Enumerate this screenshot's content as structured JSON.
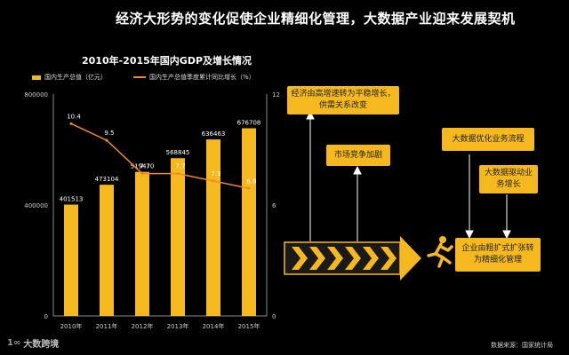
{
  "headline": "经济大形势的变化促使企业精细化管理，大数据产业迎来发展契机",
  "chart_data": {
    "type": "bar",
    "title": "2010年-2015年国内GDP及增长情况",
    "categories": [
      "2010年",
      "2011年",
      "2012年",
      "2013年",
      "2014年",
      "2015年"
    ],
    "ylim": [
      0,
      800000
    ],
    "y_ticks": [
      "0",
      "400000",
      "800000"
    ],
    "y2lim": [
      0,
      12
    ],
    "y2_ticks": [
      "0",
      "6",
      "12"
    ],
    "series": [
      {
        "name": "国内生产总值（亿元）",
        "type": "bar",
        "color": "#F5B91E",
        "values": [
          401513,
          473104,
          519470,
          568845,
          636463,
          676708
        ],
        "labels": [
          "401513",
          "473104",
          "519470",
          "568845",
          "636463",
          "676708"
        ]
      },
      {
        "name": "国内生产总值季度累计同比增长（%）",
        "type": "line",
        "color": "#F08A24",
        "values": [
          10.4,
          9.5,
          7.7,
          7.7,
          7.3,
          6.9
        ],
        "labels": [
          "10.4",
          "9.5",
          "7.7",
          "7.7",
          "7.3",
          "6.9"
        ]
      }
    ]
  },
  "diagram": {
    "box_slowdown": "经济由高增速转为平稳增长，供需关系改变",
    "box_competition": "市场竞争加剧",
    "box_optimize": "大数据优化业务流程",
    "box_driven": "大数据驱动业务增长",
    "box_refine": "企业由粗扩式扩张转为精细化管理"
  },
  "source": "数据来源：国家统计局",
  "logo_text": "大数跨境",
  "colors": {
    "accent": "#F5B91E",
    "line": "#F08A24",
    "background": "#000000"
  }
}
